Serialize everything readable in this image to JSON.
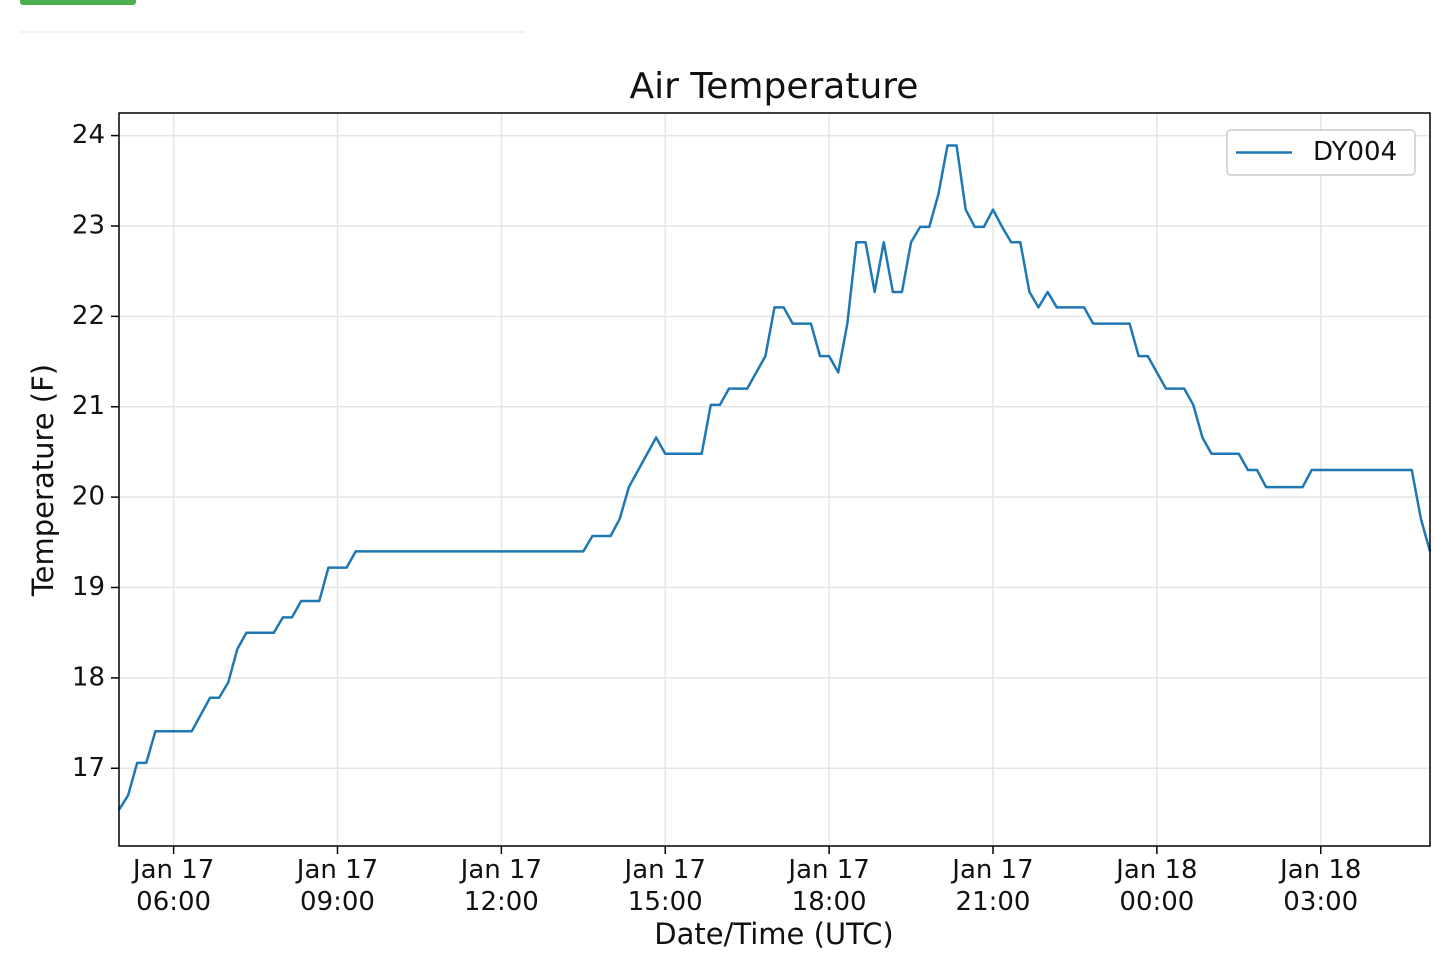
{
  "chart_data": {
    "type": "line",
    "title": "Air Temperature",
    "x_label": "Date/Time (UTC)",
    "y_label": "Temperature (F)",
    "x": [
      "Jan 17 05:00",
      "Jan 17 05:10",
      "Jan 17 05:20",
      "Jan 17 05:30",
      "Jan 17 05:40",
      "Jan 17 06:20",
      "Jan 17 06:40",
      "Jan 17 06:50",
      "Jan 17 07:00",
      "Jan 17 07:10",
      "Jan 17 07:20",
      "Jan 17 07:50",
      "Jan 17 08:00",
      "Jan 17 08:10",
      "Jan 17 08:20",
      "Jan 17 08:40",
      "Jan 17 08:50",
      "Jan 17 09:10",
      "Jan 17 09:20",
      "Jan 17 13:30",
      "Jan 17 13:40",
      "Jan 17 14:00",
      "Jan 17 14:10",
      "Jan 17 14:20",
      "Jan 17 14:50",
      "Jan 17 15:00",
      "Jan 17 15:40",
      "Jan 17 15:50",
      "Jan 17 16:00",
      "Jan 17 16:10",
      "Jan 17 16:30",
      "Jan 17 16:50",
      "Jan 17 17:00",
      "Jan 17 17:10",
      "Jan 17 17:20",
      "Jan 17 17:40",
      "Jan 17 17:50",
      "Jan 17 18:00",
      "Jan 17 18:10",
      "Jan 17 18:20",
      "Jan 17 18:30",
      "Jan 17 18:40",
      "Jan 17 18:50",
      "Jan 17 19:00",
      "Jan 17 19:10",
      "Jan 17 19:20",
      "Jan 17 19:30",
      "Jan 17 19:40",
      "Jan 17 19:50",
      "Jan 17 20:00",
      "Jan 17 20:10",
      "Jan 17 20:20",
      "Jan 17 20:30",
      "Jan 17 20:40",
      "Jan 17 20:50",
      "Jan 17 21:00",
      "Jan 17 21:10",
      "Jan 17 21:20",
      "Jan 17 21:30",
      "Jan 17 21:40",
      "Jan 17 21:50",
      "Jan 17 22:00",
      "Jan 17 22:10",
      "Jan 17 22:40",
      "Jan 17 22:50",
      "Jan 17 23:30",
      "Jan 17 23:40",
      "Jan 17 23:50",
      "Jan 18 00:10",
      "Jan 18 00:30",
      "Jan 18 00:40",
      "Jan 18 00:50",
      "Jan 18 01:00",
      "Jan 18 01:30",
      "Jan 18 01:40",
      "Jan 18 01:50",
      "Jan 18 02:00",
      "Jan 18 02:40",
      "Jan 18 02:50",
      "Jan 18 04:40",
      "Jan 18 04:50",
      "Jan 18 05:00"
    ],
    "series": [
      {
        "name": "DY004",
        "color": "#1f77b4",
        "values": [
          16.54,
          16.7,
          17.06,
          17.06,
          17.41,
          17.41,
          17.78,
          17.78,
          17.95,
          18.32,
          18.5,
          18.5,
          18.67,
          18.67,
          18.85,
          18.85,
          19.22,
          19.22,
          19.4,
          19.4,
          19.57,
          19.57,
          19.76,
          20.11,
          20.66,
          20.48,
          20.48,
          21.02,
          21.02,
          21.2,
          21.2,
          21.56,
          22.1,
          22.1,
          21.92,
          21.92,
          21.56,
          21.56,
          21.38,
          21.92,
          22.82,
          22.82,
          22.27,
          22.82,
          22.27,
          22.27,
          22.82,
          22.99,
          22.99,
          23.35,
          23.89,
          23.89,
          23.18,
          22.99,
          22.99,
          23.18,
          22.99,
          22.82,
          22.82,
          22.27,
          22.1,
          22.27,
          22.1,
          22.1,
          21.92,
          21.92,
          21.56,
          21.56,
          21.2,
          21.2,
          21.02,
          20.66,
          20.48,
          20.48,
          20.3,
          20.3,
          20.11,
          20.11,
          20.3,
          20.3,
          19.76,
          19.4
        ]
      }
    ],
    "xlim": [
      "Jan 17 05:00",
      "Jan 18 05:00"
    ],
    "xticks": [
      "Jan 17 06:00",
      "Jan 17 09:00",
      "Jan 17 12:00",
      "Jan 17 15:00",
      "Jan 17 18:00",
      "Jan 17 21:00",
      "Jan 18 00:00",
      "Jan 18 03:00"
    ],
    "ylim": [
      16.14,
      24.25
    ],
    "yticks": [
      17,
      18,
      19,
      20,
      21,
      22,
      23,
      24
    ],
    "grid": true,
    "legend": "upper right"
  }
}
